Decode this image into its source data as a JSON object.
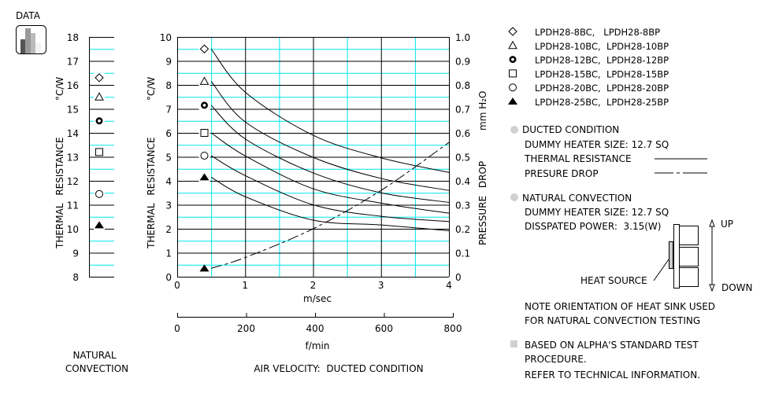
{
  "header": {
    "data_label": "DATA",
    "icon": "bar-chart-icon"
  },
  "colors": {
    "grid_major": "#000000",
    "grid_minor": "#00e5ee",
    "curve": "#000000",
    "bullet": "#d0d0d0"
  },
  "chart_data": [
    {
      "type": "scatter",
      "title": "NATURAL CONVECTION",
      "ylabel": "THERMAL RESISTANCE",
      "yunit": "°C/W",
      "ylim": [
        8,
        18
      ],
      "yticks": [
        "8",
        "9",
        "10",
        "11",
        "12",
        "13",
        "14",
        "15",
        "16",
        "17",
        "18"
      ],
      "grid": true,
      "series": [
        {
          "name": "LPDH28-8BC, LPDH28-8BP",
          "marker": "diamond",
          "value": 16.3
        },
        {
          "name": "LPDH28-10BC, LPDH28-10BP",
          "marker": "triangle",
          "value": 15.5
        },
        {
          "name": "LPDH28-12BC, LPDH28-12BP",
          "marker": "bold-circle",
          "value": 14.5
        },
        {
          "name": "LPDH28-15BC, LPDH28-15BP",
          "marker": "square",
          "value": 13.2
        },
        {
          "name": "LPDH28-20BC, LPDH28-20BP",
          "marker": "circle",
          "value": 11.45
        },
        {
          "name": "LPDH28-25BC, LPDH28-25BP",
          "marker": "filled-triangle",
          "value": 10.15
        }
      ]
    },
    {
      "type": "line",
      "title": "AIR VELOCITY:  DUCTED CONDITION",
      "xlabel": "m/sec",
      "xlabel2": "f/min",
      "ylabel": "THERMAL RESISTANCE",
      "yunit": "°C/W",
      "y2label": "PRESSURE DROP",
      "y2unit": "mm H₂O",
      "xlim": [
        0,
        4
      ],
      "x2lim": [
        0,
        800
      ],
      "ylim": [
        0,
        10
      ],
      "y2lim": [
        0,
        1.0
      ],
      "xticks": [
        "0",
        "1",
        "2",
        "3",
        "4"
      ],
      "x2ticks": [
        "0",
        "200",
        "400",
        "600",
        "800"
      ],
      "yticks": [
        "0",
        "1",
        "2",
        "3",
        "4",
        "5",
        "6",
        "7",
        "8",
        "9",
        "10"
      ],
      "y2ticks": [
        "0",
        "0.1",
        "0.2",
        "0.3",
        "0.4",
        "0.5",
        "0.6",
        "0.7",
        "0.8",
        "0.9",
        "1.0"
      ],
      "grid": true,
      "x": [
        0.5,
        1,
        2,
        3,
        4
      ],
      "series": [
        {
          "marker": "diamond",
          "values": [
            9.5,
            7.7,
            5.9,
            4.96,
            4.35
          ]
        },
        {
          "marker": "triangle",
          "values": [
            8.15,
            6.46,
            4.98,
            4.1,
            3.6
          ]
        },
        {
          "marker": "bold-circle",
          "values": [
            7.15,
            5.75,
            4.33,
            3.5,
            3.1
          ]
        },
        {
          "marker": "square",
          "values": [
            6.0,
            5.04,
            3.67,
            3.07,
            2.65
          ]
        },
        {
          "marker": "circle",
          "values": [
            5.05,
            4.22,
            3.0,
            2.52,
            2.3
          ]
        },
        {
          "marker": "filled-triangle",
          "values": [
            4.15,
            3.34,
            2.36,
            2.16,
            1.92
          ]
        }
      ],
      "pressure_drop": {
        "marker": "filled-triangle",
        "axis": "right",
        "values": [
          0.035,
          0.08,
          0.2,
          0.36,
          0.56
        ]
      }
    }
  ],
  "legend": [
    {
      "marker": "diamond",
      "label": "LPDH28-8BC,   LPDH28-8BP"
    },
    {
      "marker": "triangle",
      "label": "LPDH28-10BC,  LPDH28-10BP"
    },
    {
      "marker": "bold-circle",
      "label": "LPDH28-12BC,  LPDH28-12BP"
    },
    {
      "marker": "square",
      "label": "LPDH28-15BC,  LPDH28-15BP"
    },
    {
      "marker": "circle",
      "label": "LPDH28-20BC,  LPDH28-20BP"
    },
    {
      "marker": "filled-triangle",
      "label": "LPDH28-25BC,  LPDH28-25BP"
    }
  ],
  "notes": {
    "ducted_title": "DUCTED CONDITION",
    "ducted_heater": "DUMMY HEATER SIZE: 12.7 SQ",
    "thermal_resistance": "THERMAL RESISTANCE",
    "pressure_drop": "PRESURE DROP",
    "natural_title": "NATURAL CONVECTION",
    "natural_heater": "DUMMY HEATER SIZE: 12.7 SQ",
    "power": "DISSPATED POWER:  3.15(W)",
    "up": "UP",
    "down": "DOWN",
    "heat_source": "HEAT SOURCE",
    "orientation_1": "NOTE ORIENTATION OF HEAT SINK USED",
    "orientation_2": "FOR NATURAL CONVECTION TESTING",
    "based_1": "BASED ON ALPHA'S STANDARD TEST",
    "based_2": "PROCEDURE.",
    "based_3": "REFER TO TECHNICAL INFORMATION."
  }
}
